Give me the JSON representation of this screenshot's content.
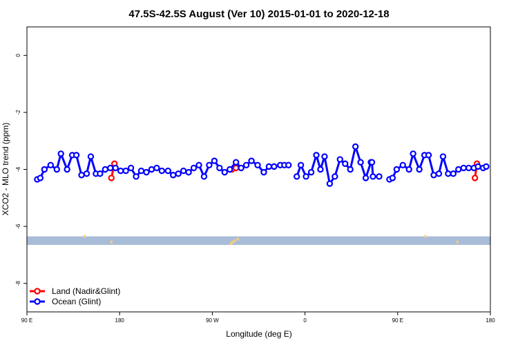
{
  "chart_data": {
    "type": "line",
    "title": "47.5S-42.5S August (Ver 10)   2015-01-01 to 2020-12-18",
    "xlabel": "Longitude (deg E)",
    "ylabel": "XCO2 - MLO trend (ppm)",
    "xlim": [
      90,
      540
    ],
    "ylim": [
      -9,
      1
    ],
    "x_ticks": [
      {
        "value": 90,
        "label": "90 E"
      },
      {
        "value": 180,
        "label": "180"
      },
      {
        "value": 270,
        "label": "90 W"
      },
      {
        "value": 360,
        "label": "0"
      },
      {
        "value": 450,
        "label": "90 E"
      },
      {
        "value": 540,
        "label": "180"
      }
    ],
    "y_ticks": [
      {
        "value": 0,
        "label": "0"
      },
      {
        "value": -2,
        "label": "-2"
      },
      {
        "value": -4,
        "label": "-4"
      },
      {
        "value": -6,
        "label": "-6"
      },
      {
        "value": -8,
        "label": "-8"
      }
    ],
    "legend_position": "bottom-left",
    "band": {
      "y_min": -6.65,
      "y_max": -6.35,
      "color": "#a8bcd8"
    },
    "land_markers": {
      "color": "#f5d07a",
      "x": [
        146,
        172,
        288,
        290,
        292,
        295,
        477,
        508
      ],
      "y": [
        -6.35,
        -6.55,
        -6.6,
        -6.55,
        -6.5,
        -6.45,
        -6.35,
        -6.55
      ]
    },
    "series": [
      {
        "name": "Land (Nadir&Glint)",
        "color": "#ff0000",
        "segments": [
          {
            "x": [
              172,
              175
            ],
            "y": [
              -4.3,
              -3.8
            ]
          },
          {
            "x": [
              289,
              293
            ],
            "y": [
              -4.0,
              -3.95
            ]
          },
          {
            "x": [
              525,
              527
            ],
            "y": [
              -4.3,
              -3.8
            ]
          }
        ]
      },
      {
        "name": "Ocean (Glint)",
        "color": "#0000ff",
        "segments": [
          {
            "x": [
              100,
              103,
              107,
              113,
              119,
              123,
              129,
              134,
              138,
              143,
              148,
              152,
              157,
              161,
              166,
              171,
              176,
              181,
              186,
              191,
              196,
              201,
              206,
              211,
              216,
              221,
              227,
              232,
              237,
              242,
              247,
              252,
              257,
              262,
              267,
              272,
              277,
              282,
              287,
              293,
              298,
              303,
              308,
              314,
              320,
              325,
              330,
              336,
              340,
              344
            ],
            "y": [
              -4.35,
              -4.3,
              -4.0,
              -3.85,
              -4.0,
              -3.45,
              -4.0,
              -3.5,
              -3.5,
              -4.2,
              -4.15,
              -3.55,
              -4.15,
              -4.15,
              -4.0,
              -3.95,
              -3.95,
              -4.05,
              -4.05,
              -3.95,
              -4.25,
              -4.05,
              -4.1,
              -4.0,
              -3.95,
              -4.05,
              -4.05,
              -4.2,
              -4.15,
              -4.05,
              -4.1,
              -3.95,
              -3.85,
              -4.25,
              -3.85,
              -3.7,
              -3.95,
              -4.1,
              -4.0,
              -3.75,
              -3.95,
              -3.85,
              -3.7,
              -3.85,
              -4.1,
              -3.9,
              -3.9,
              -3.85,
              -3.85,
              -3.85
            ]
          },
          {
            "x": [
              352,
              356,
              361,
              366,
              371,
              375,
              379,
              384,
              389,
              394,
              399,
              404,
              409,
              414,
              419,
              424
            ],
            "y": [
              -4.25,
              -3.85,
              -4.25,
              -4.1,
              -3.5,
              -4.0,
              -3.55,
              -4.5,
              -4.25,
              -3.65,
              -3.8,
              -4.0,
              -3.2,
              -3.75,
              -4.3,
              -3.75
            ]
          },
          {
            "x": [
              432
            ],
            "y": [
              -4.25
            ]
          }
        ]
      },
      {
        "name": "Ocean (Glint)",
        "color": "#0000ff",
        "is_continuation": true,
        "segments": [
          {
            "x": [
              425,
              426
            ],
            "y": [
              -3.75,
              -4.25
            ]
          },
          {
            "x": [
              442,
              445,
              449,
              455,
              461,
              465,
              471,
              476,
              480,
              485,
              490,
              494,
              499,
              504,
              509,
              514,
              519,
              524,
              528,
              533,
              536
            ],
            "y": [
              -4.35,
              -4.3,
              -4.0,
              -3.85,
              -4.0,
              -3.45,
              -4.0,
              -3.5,
              -3.5,
              -4.2,
              -4.15,
              -3.55,
              -4.15,
              -4.15,
              -4.0,
              -3.95,
              -3.95,
              -3.95,
              -3.9,
              -3.95,
              -3.9
            ]
          }
        ]
      }
    ]
  }
}
